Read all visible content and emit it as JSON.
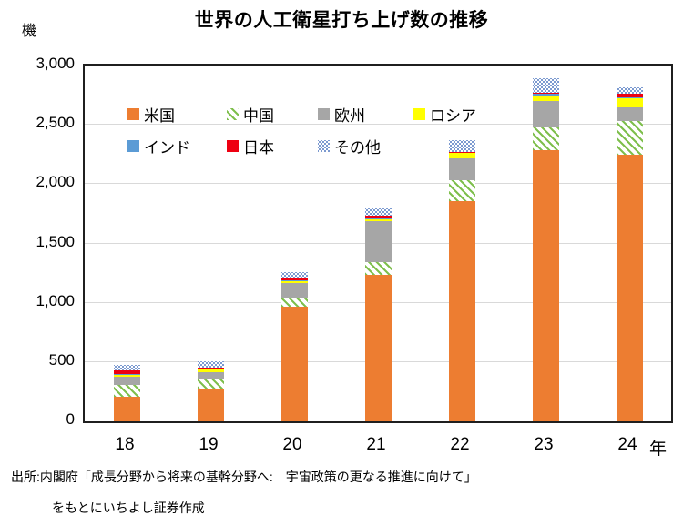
{
  "title": "世界の人工衛星打ち上げ数の推移",
  "y_unit_label": "機",
  "x_unit_label": "年",
  "source": {
    "line1": "出所:内閣府「成長分野から将来の基幹分野へ:　宇宙政策の更なる推進に向けて」",
    "line2": "をもとにいちよし証券作成"
  },
  "chart_data": {
    "type": "bar",
    "stacked": true,
    "title": "世界の人工衛星打ち上げ数の推移",
    "ylabel": "機",
    "xlabel": "年",
    "categories": [
      "18",
      "19",
      "20",
      "21",
      "22",
      "23",
      "24"
    ],
    "ylim": [
      0,
      3000
    ],
    "ytick_interval": 500,
    "yticks": [
      "0",
      "500",
      "1,000",
      "1,500",
      "2,000",
      "2,500",
      "3,000"
    ],
    "grid": "horizontal",
    "legend_position": "inside-top-left",
    "series": [
      {
        "name": "米国",
        "key": "us",
        "color": "#ED7D31",
        "pattern": "solid",
        "values": [
          210,
          275,
          970,
          1235,
          1860,
          2290,
          2250
        ]
      },
      {
        "name": "中国",
        "key": "china",
        "color": "#7FBF4D",
        "pattern": "diagonal-hatch",
        "values": [
          95,
          85,
          70,
          105,
          175,
          185,
          285
        ]
      },
      {
        "name": "欧州",
        "key": "europe",
        "color": "#A6A6A6",
        "pattern": "solid",
        "values": [
          70,
          55,
          125,
          345,
          185,
          225,
          115
        ]
      },
      {
        "name": "ロシア",
        "key": "russia",
        "color": "#FFFF00",
        "pattern": "solid",
        "values": [
          15,
          25,
          15,
          15,
          40,
          50,
          75
        ]
      },
      {
        "name": "インド",
        "key": "india",
        "color": "#5B9BD5",
        "pattern": "solid",
        "values": [
          8,
          8,
          8,
          8,
          5,
          15,
          8
        ]
      },
      {
        "name": "日本",
        "key": "japan",
        "color": "#EE0011",
        "pattern": "solid",
        "values": [
          30,
          7,
          25,
          25,
          5,
          5,
          30
        ]
      },
      {
        "name": "その他",
        "key": "other",
        "color": "#7C9AD0",
        "pattern": "dotted",
        "values": [
          52,
          55,
          47,
          62,
          100,
          120,
          57
        ]
      }
    ],
    "totals_approx": [
      480,
      510,
      1260,
      1795,
      2370,
      2890,
      2820
    ]
  },
  "legend": {
    "rows": [
      [
        "us",
        "china",
        "europe",
        "russia"
      ],
      [
        "india",
        "japan",
        "other"
      ]
    ]
  }
}
